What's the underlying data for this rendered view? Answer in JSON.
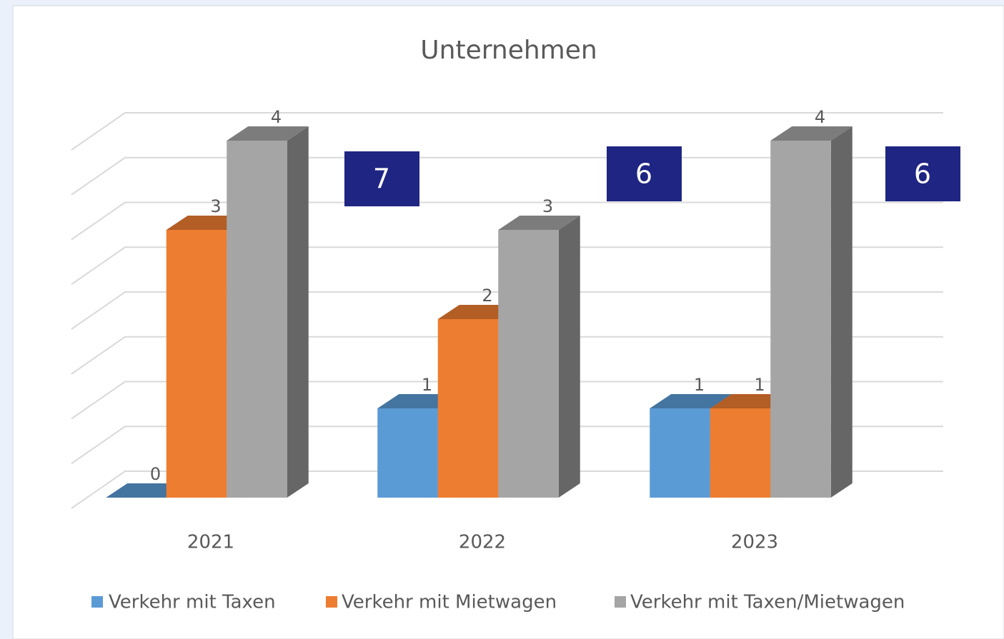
{
  "chart_data": {
    "type": "bar3d",
    "title": "Unternehmen",
    "categories": [
      "2021",
      "2022",
      "2023"
    ],
    "series": [
      {
        "name": "Verkehr mit Taxen",
        "color": "#5b9bd5",
        "values": [
          0,
          1,
          1
        ]
      },
      {
        "name": "Verkehr mit Mietwagen",
        "color": "#ed7d31",
        "values": [
          3,
          2,
          1
        ]
      },
      {
        "name": "Verkehr mit Taxen/Mietwagen",
        "color": "#a5a5a5",
        "values": [
          4,
          3,
          4
        ]
      }
    ],
    "annotations": [
      7,
      6,
      6
    ],
    "ylim": [
      0,
      4
    ],
    "yticks": [
      0,
      0.5,
      1,
      1.5,
      2,
      2.5,
      3,
      3.5,
      4
    ],
    "grid": true,
    "legend": "bottom"
  }
}
